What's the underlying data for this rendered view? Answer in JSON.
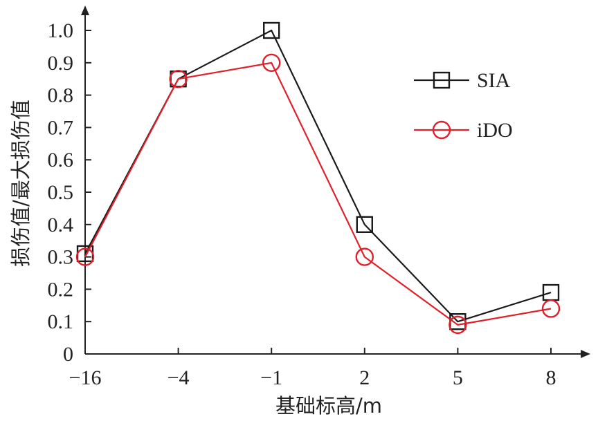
{
  "chart_data": {
    "type": "line",
    "categories": [
      "−16",
      "−4",
      "−1",
      "2",
      "5",
      "8"
    ],
    "xlabel": "基础标高/m",
    "ylabel": "损伤值/最大损伤值",
    "ylim": [
      0,
      1.0
    ],
    "yticks": [
      "0",
      "0.1",
      "0.2",
      "0.3",
      "0.4",
      "0.5",
      "0.6",
      "0.7",
      "0.8",
      "0.9",
      "1.0"
    ],
    "grid": false,
    "legend_position": "top-right",
    "series": [
      {
        "name": "SIA",
        "marker": "square",
        "color": "#1a1a1a",
        "values": [
          0.31,
          0.85,
          1.0,
          0.4,
          0.1,
          0.19
        ]
      },
      {
        "name": "iDO",
        "marker": "circle",
        "color": "#e0202a",
        "values": [
          0.3,
          0.85,
          0.9,
          0.3,
          0.09,
          0.14
        ]
      }
    ]
  }
}
